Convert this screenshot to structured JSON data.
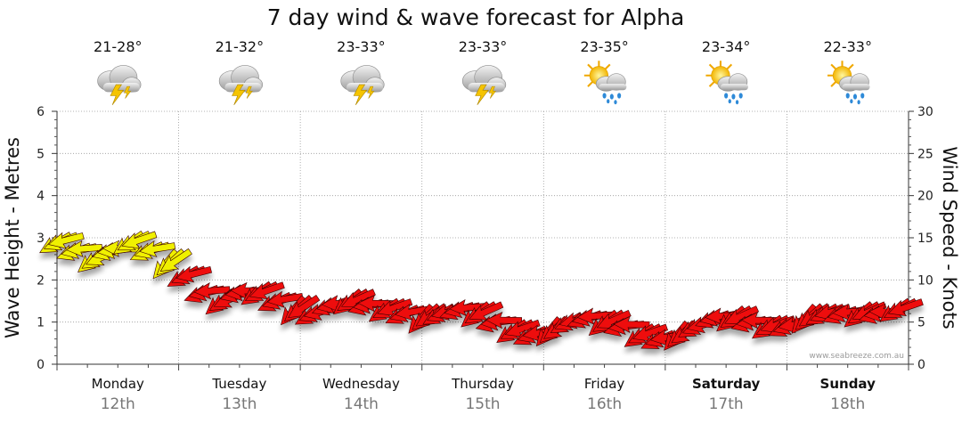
{
  "chart_data": {
    "type": "line",
    "title": "7 day wind & wave forecast for Alpha",
    "ylabel_left": "Wave Height - Metres",
    "ylabel_right": "Wind Speed - Knots",
    "ylim_left": [
      0,
      6
    ],
    "ylim_right": [
      0,
      30
    ],
    "yticks_left": [
      "0",
      "1",
      "2",
      "3",
      "4",
      "5",
      "6"
    ],
    "yticks_right": [
      "0",
      "5",
      "10",
      "15",
      "20",
      "25",
      "30"
    ],
    "grid": true,
    "days": [
      {
        "day": "Monday",
        "date": "12th",
        "temp": "21-28°",
        "icon": "storm-icon",
        "bold": false
      },
      {
        "day": "Tuesday",
        "date": "13th",
        "temp": "21-32°",
        "icon": "storm-icon",
        "bold": false
      },
      {
        "day": "Wednesday",
        "date": "14th",
        "temp": "23-33°",
        "icon": "storm-icon",
        "bold": false
      },
      {
        "day": "Thursday",
        "date": "15th",
        "temp": "23-33°",
        "icon": "storm-icon",
        "bold": false
      },
      {
        "day": "Friday",
        "date": "16th",
        "temp": "23-35°",
        "icon": "sun-showers-icon",
        "bold": false
      },
      {
        "day": "Saturday",
        "date": "17th",
        "temp": "23-34°",
        "icon": "sun-showers-icon",
        "bold": true
      },
      {
        "day": "Sunday",
        "date": "18th",
        "temp": "22-33°",
        "icon": "sun-showers-icon",
        "bold": true
      }
    ],
    "series": [
      {
        "name": "Wind Speed",
        "note": "arrows, colored by speed (yellow = higher, red = lower)",
        "x_days": [
          0.0,
          0.15,
          0.3,
          0.45,
          0.6,
          0.75,
          0.9,
          1.05,
          1.2,
          1.35,
          1.5,
          1.65,
          1.8,
          1.95,
          2.1,
          2.25,
          2.4,
          2.55,
          2.7,
          2.85,
          3.0,
          3.15,
          3.3,
          3.45,
          3.6,
          3.75,
          3.9,
          4.05,
          4.2,
          4.35,
          4.5,
          4.65,
          4.8,
          4.95,
          5.1,
          5.25,
          5.4,
          5.55,
          5.7,
          5.85,
          6.0,
          6.15,
          6.3,
          6.45,
          6.6,
          6.75,
          6.9
        ],
        "values_knots": [
          14.5,
          13.5,
          12.5,
          13.5,
          14.5,
          13.5,
          12.0,
          10.5,
          8.5,
          7.5,
          8.5,
          8.5,
          7.5,
          6.5,
          6.0,
          7.0,
          7.5,
          7.0,
          6.5,
          6.0,
          5.5,
          6.0,
          6.5,
          6.0,
          5.0,
          4.0,
          3.5,
          4.0,
          5.0,
          5.5,
          5.0,
          4.5,
          3.5,
          3.0,
          3.5,
          4.5,
          5.5,
          5.5,
          5.0,
          4.5,
          4.5,
          5.5,
          6.0,
          6.0,
          6.0,
          6.0,
          6.5
        ]
      }
    ]
  },
  "credit": "www.seabreeze.com.au"
}
